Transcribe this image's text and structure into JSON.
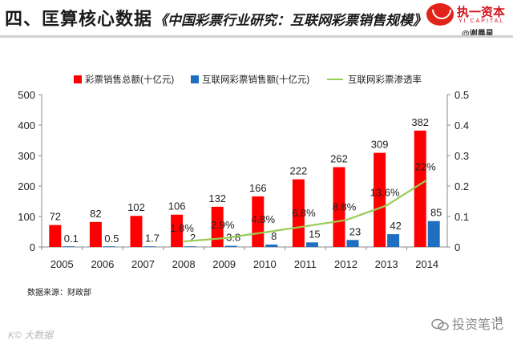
{
  "header": {
    "title": "四、匡算核心数据",
    "subtitle": "《中国彩票行业研究：互联网彩票销售规模》"
  },
  "brand": {
    "name": "执一资本",
    "name_en": "YI CAPITAL",
    "author": "@谢晨星"
  },
  "footer": {
    "source": "数据来源：财政部",
    "page_number": "13",
    "watermark_left": "K© 大数据",
    "watermark_right": "投资笔记"
  },
  "colors": {
    "total_bar": "#ff0000",
    "internet_bar": "#1f6fc0",
    "penetration_line": "#99cc55"
  },
  "chart_data": {
    "type": "bar",
    "categories": [
      "2005",
      "2006",
      "2007",
      "2008",
      "2009",
      "2010",
      "2011",
      "2012",
      "2013",
      "2014"
    ],
    "series": [
      {
        "name": "彩票销售总额(十亿元)",
        "kind": "bar",
        "axis": "left",
        "values": [
          72,
          82,
          102,
          106,
          132,
          166,
          222,
          262,
          309,
          382
        ],
        "labels": [
          "72",
          "82",
          "102",
          "106",
          "132",
          "166",
          "222",
          "262",
          "309",
          "382"
        ]
      },
      {
        "name": "互联网彩票销售额(十亿元)",
        "kind": "bar",
        "axis": "left",
        "values": [
          0.1,
          0.5,
          1.7,
          2,
          3.8,
          8,
          15,
          23,
          42,
          85
        ],
        "labels": [
          "0.1",
          "0.5",
          "1.7",
          "2",
          "3.8",
          "8",
          "15",
          "23",
          "42",
          "85"
        ]
      },
      {
        "name": "互联网彩票渗透率",
        "kind": "line",
        "axis": "right",
        "values": [
          null,
          null,
          null,
          0.018,
          0.029,
          0.048,
          0.068,
          0.088,
          0.136,
          0.22
        ],
        "labels": [
          "",
          "",
          "",
          "1.8%",
          "2.9%",
          "4.8%",
          "6.8%",
          "8.8%",
          "13.6%",
          "22%"
        ]
      }
    ],
    "y_left": {
      "range": [
        0,
        500
      ],
      "ticks": [
        "0",
        "100",
        "200",
        "300",
        "400",
        "500"
      ]
    },
    "y_right": {
      "range": [
        0,
        0.5
      ],
      "ticks": [
        "0",
        "0.1",
        "0.2",
        "0.3",
        "0.4",
        "0.5"
      ]
    },
    "legend_position": "top",
    "grid": false
  }
}
